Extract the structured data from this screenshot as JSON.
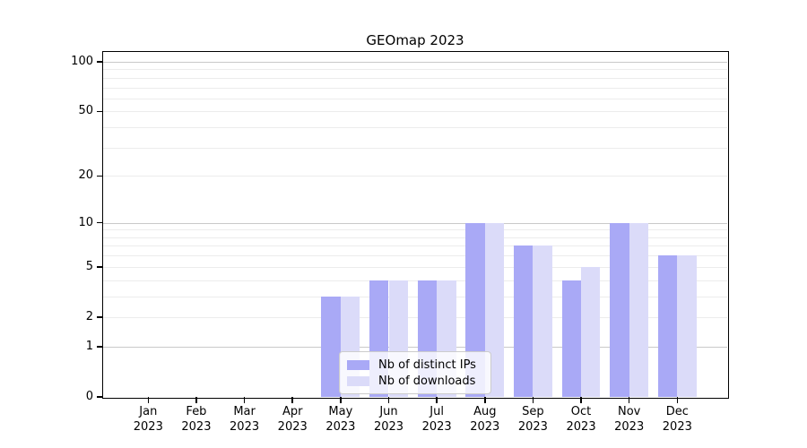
{
  "chart_data": {
    "type": "bar",
    "title": "GEOmap 2023",
    "categories": [
      "Jan 2023",
      "Feb 2023",
      "Mar 2023",
      "Apr 2023",
      "May 2023",
      "Jun 2023",
      "Jul 2023",
      "Aug 2023",
      "Sep 2023",
      "Oct 2023",
      "Nov 2023",
      "Dec 2023"
    ],
    "series": [
      {
        "name": "Nb of distinct IPs",
        "color": "#a9a9f6",
        "values": [
          0,
          0,
          0,
          0,
          3,
          4,
          4,
          10,
          7,
          4,
          10,
          6
        ]
      },
      {
        "name": "Nb of downloads",
        "color": "#dbdbf9",
        "values": [
          0,
          0,
          0,
          0,
          3,
          4,
          4,
          10,
          7,
          5,
          10,
          6
        ]
      }
    ],
    "xlabel": "",
    "ylabel": "",
    "yscale": "log1p-symlog",
    "ylim": [
      0,
      115
    ],
    "yticks": [
      0,
      1,
      2,
      5,
      10,
      20,
      50,
      100
    ],
    "major_gridlines": [
      1,
      10,
      100
    ],
    "minor_gridlines": [
      2,
      3,
      4,
      5,
      6,
      7,
      8,
      9,
      20,
      30,
      40,
      50,
      60,
      70,
      80,
      90
    ],
    "grid": "horizontal",
    "legend_position": "lower center inside plot"
  },
  "colors": {
    "bar_distinct_ips": "#a9a9f6",
    "bar_downloads": "#dbdbf9",
    "major_grid": "#c9c9c9",
    "minor_grid": "#ececec",
    "axis": "#000000",
    "background": "#ffffff"
  }
}
